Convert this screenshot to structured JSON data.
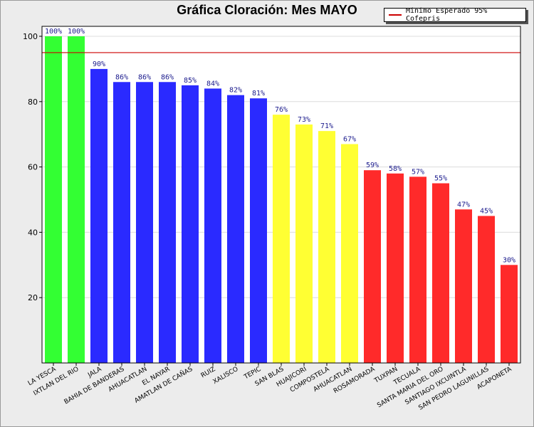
{
  "chart_data": {
    "type": "bar",
    "title": "Gráfica Cloración: Mes MAYO",
    "xlabel": "",
    "ylabel": "",
    "ylim": [
      0,
      100
    ],
    "yticks": [
      20,
      40,
      60,
      80,
      100
    ],
    "reference_line": {
      "value": 95,
      "label": "Minimo Esperado 95% Cofepris",
      "color": "#cc0000"
    },
    "categories": [
      "LA YESCA",
      "IXTLAN DEL RIO",
      "JALA",
      "BAHIA DE BANDERAS",
      "AHUACATLAN",
      "EL NAYAR",
      "AMATLAN DE CAÑAS",
      "RUIZ",
      "XALISCO",
      "TEPIC",
      "SAN BLAS",
      "HUAJICORI",
      "COMPOSTELA",
      "AHUACATLAN",
      "ROSAMORADA",
      "TUXPAN",
      "TECUALA",
      "SANTA MARIA DEL ORO",
      "SANTIAGO IXCUINTLA",
      "SAN PEDRO LAGUNILLAS",
      "ACAPONETA"
    ],
    "values": [
      100,
      100,
      90,
      86,
      86,
      86,
      85,
      84,
      82,
      81,
      76,
      73,
      71,
      67,
      59,
      58,
      57,
      55,
      47,
      45,
      30
    ],
    "value_labels": [
      "100%",
      "100%",
      "90%",
      "86%",
      "86%",
      "86%",
      "85%",
      "84%",
      "82%",
      "81%",
      "76%",
      "73%",
      "71%",
      "67%",
      "59%",
      "58%",
      "57%",
      "55%",
      "47%",
      "45%",
      "30%"
    ],
    "colors": [
      "#33ff33",
      "#33ff33",
      "#2a2aff",
      "#2a2aff",
      "#2a2aff",
      "#2a2aff",
      "#2a2aff",
      "#2a2aff",
      "#2a2aff",
      "#2a2aff",
      "#ffff33",
      "#ffff33",
      "#ffff33",
      "#ffff33",
      "#ff2a2a",
      "#ff2a2a",
      "#ff2a2a",
      "#ff2a2a",
      "#ff2a2a",
      "#ff2a2a",
      "#ff2a2a"
    ],
    "legend_position": "top-right",
    "grid": true
  }
}
